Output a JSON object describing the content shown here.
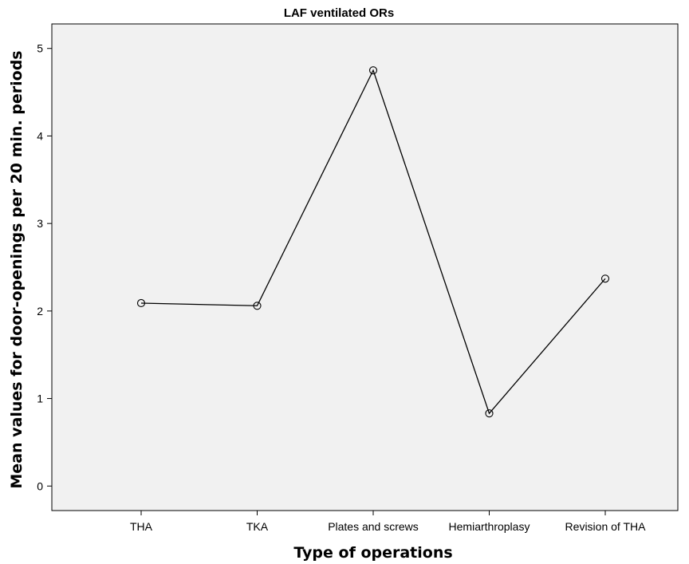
{
  "chart_data": {
    "type": "line",
    "title": "LAF ventilated ORs",
    "xlabel": "Type of operations",
    "ylabel": "Mean values for door-openings per 20 min. periods",
    "categories": [
      "THA",
      "TKA",
      "Plates and screws",
      "Hemiarthroplasy",
      "Revision of THA"
    ],
    "series": [
      {
        "values": [
          2.09,
          2.06,
          4.75,
          0.83,
          2.37
        ]
      }
    ],
    "yticks": [
      "0",
      "1",
      "2",
      "3",
      "4",
      "5"
    ],
    "ylim": [
      -0.28,
      5.28
    ],
    "grid": false,
    "marker": "open-circle",
    "colors": {
      "plot_background": "#f1f1f1",
      "line": "#000000",
      "axis": "#000000"
    }
  }
}
